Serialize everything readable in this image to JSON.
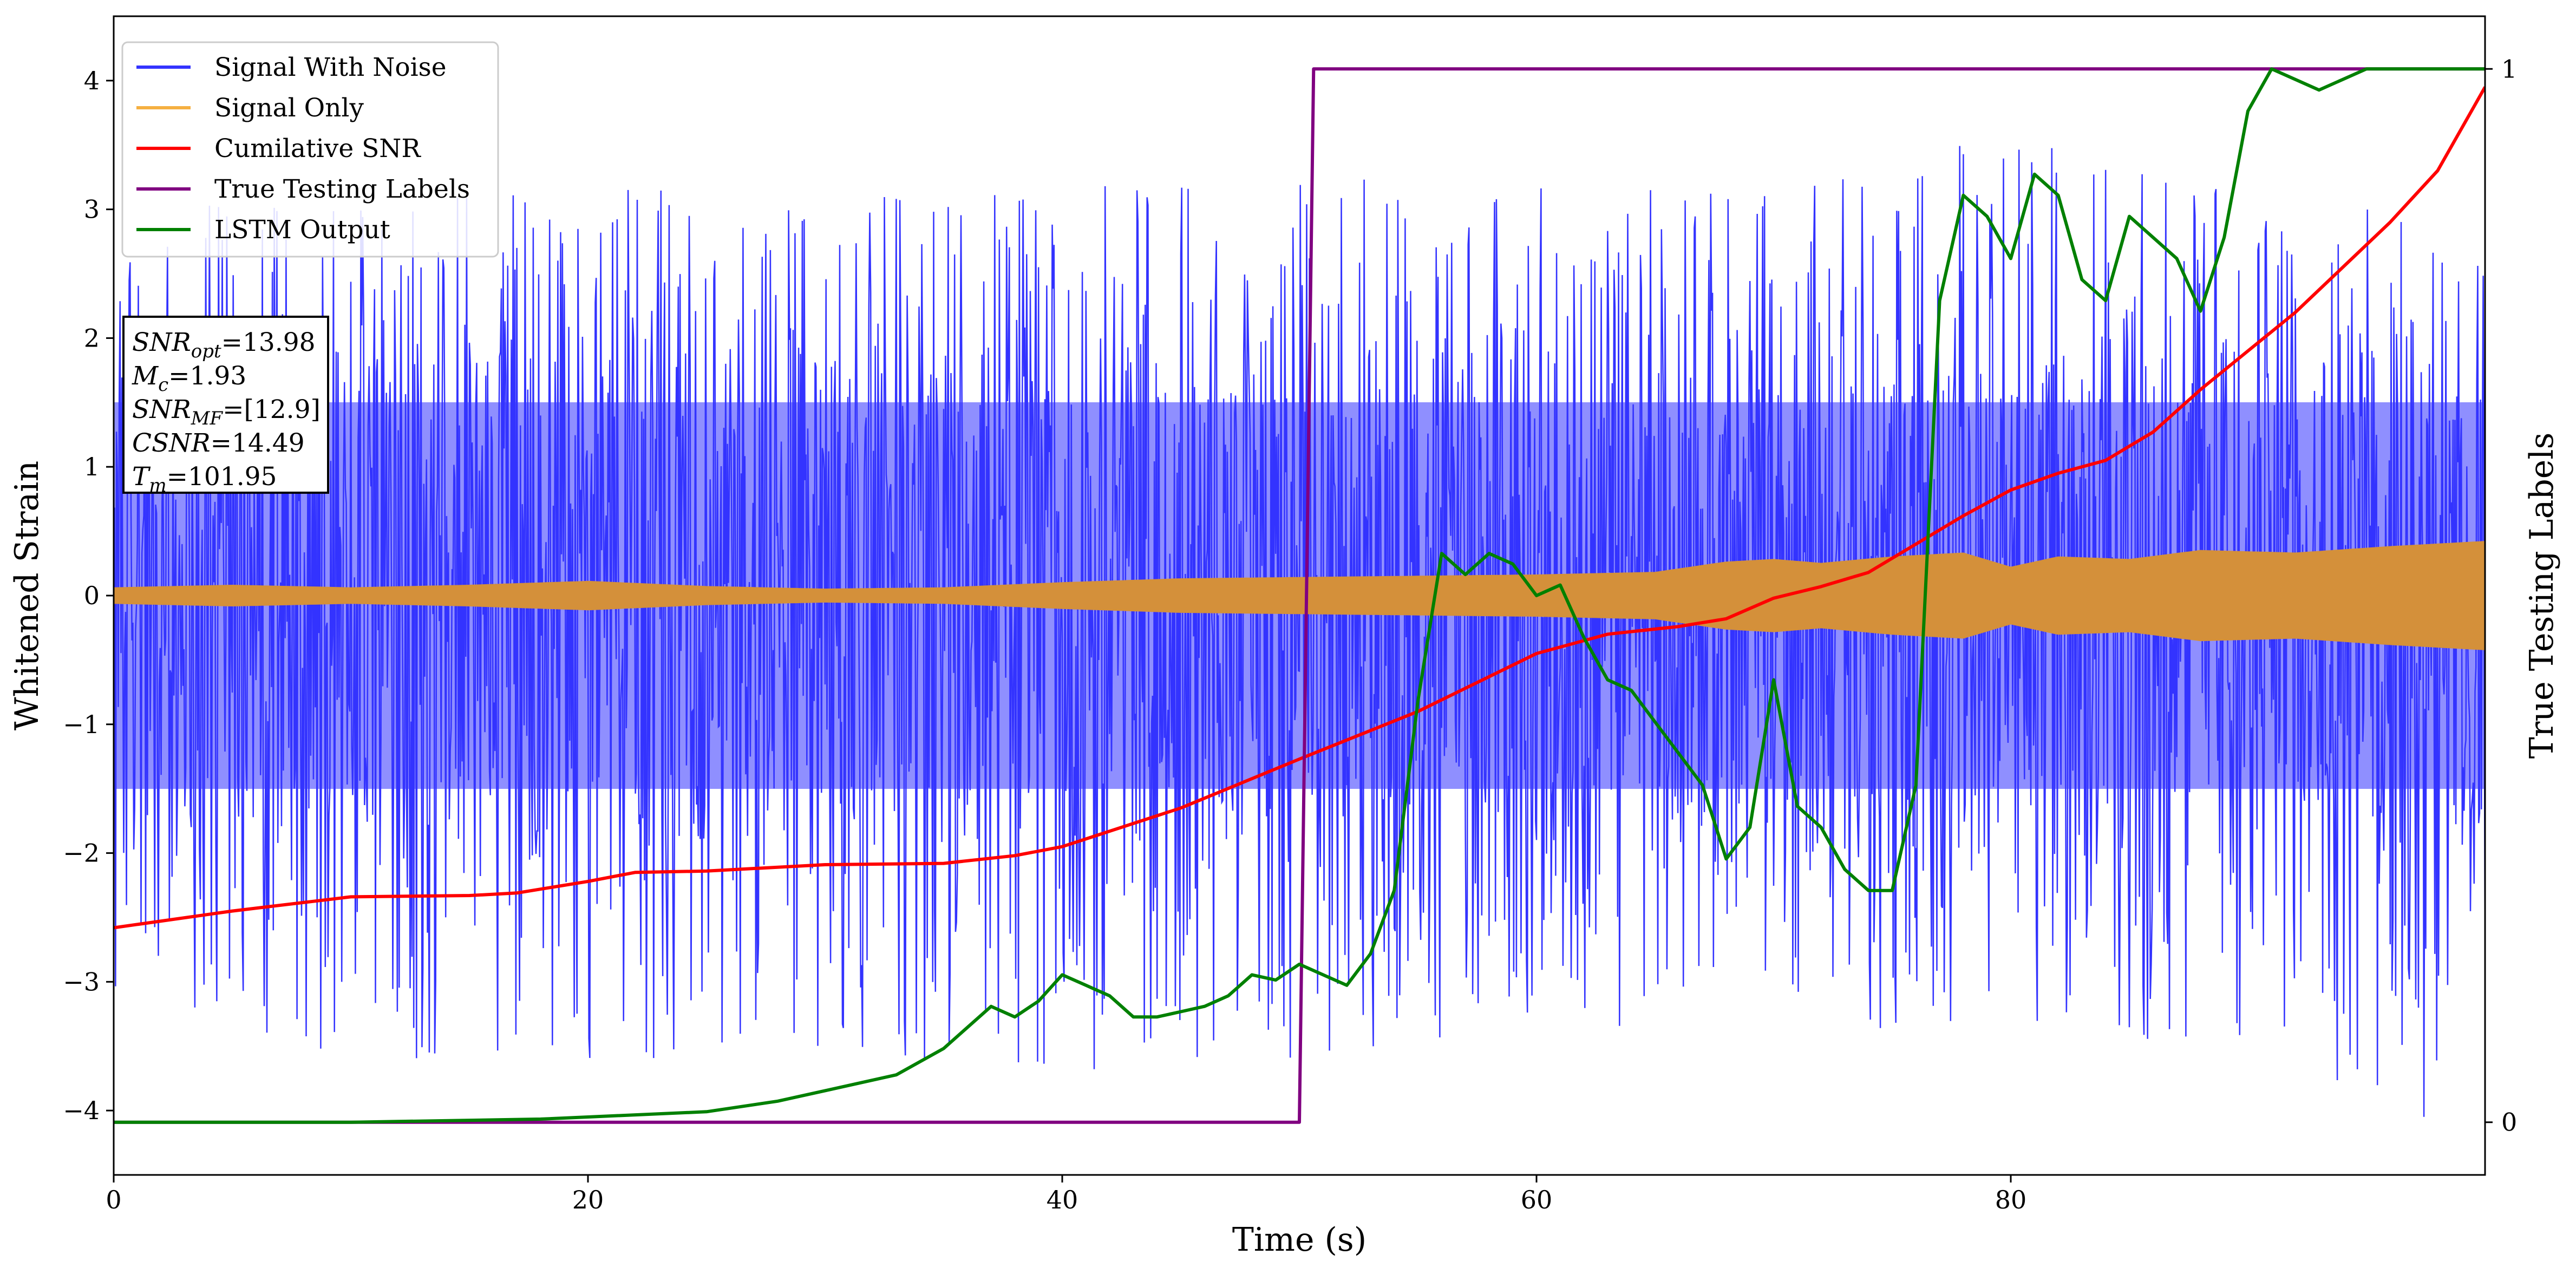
{
  "chart_data": {
    "type": "line",
    "xlabel": "Time (s)",
    "ylabel": "Whitened Strain",
    "y2label": "True Testing Labels",
    "xlim": [
      0,
      100
    ],
    "ylim": [
      -4.5,
      4.5
    ],
    "y2lim": [
      -0.05,
      1.05
    ],
    "xticks": [
      0,
      20,
      40,
      60,
      80
    ],
    "yticks": [
      -4,
      -3,
      -2,
      -1,
      0,
      1,
      2,
      3,
      4
    ],
    "y2ticks": [
      0,
      1
    ],
    "grid": false,
    "legend": {
      "placement": "top-left",
      "entries": [
        {
          "name": "Signal With Noise",
          "color": "#3333ff"
        },
        {
          "name": "Signal Only",
          "color": "#f5b041"
        },
        {
          "name": "Cumilative SNR",
          "color": "#ff0000"
        },
        {
          "name": "True Testing Labels",
          "color": "#800080"
        },
        {
          "name": "LSTM Output",
          "color": "#008000"
        }
      ]
    },
    "annotation": {
      "placement": "left",
      "lines": [
        {
          "sym": "SNR",
          "sub": "opt",
          "val": "=13.98"
        },
        {
          "sym": "M",
          "sub": "c",
          "val": "=1.93"
        },
        {
          "sym": "SNR",
          "sub": "MF",
          "val": "=[12.9]"
        },
        {
          "sym": "CSNR",
          "sub": "",
          "val": "=14.49"
        },
        {
          "sym": "T",
          "sub": "m",
          "val": "=101.95"
        }
      ]
    },
    "series": [
      {
        "name": "Signal With Noise",
        "axis": "left",
        "color": "#3333ff",
        "style": "noise",
        "envelope_upper": [
          [
            0,
            3.0
          ],
          [
            10,
            3.1
          ],
          [
            20,
            3.3
          ],
          [
            30,
            3.1
          ],
          [
            40,
            3.2
          ],
          [
            50,
            3.3
          ],
          [
            60,
            3.2
          ],
          [
            70,
            3.1
          ],
          [
            80,
            3.7
          ],
          [
            90,
            3.1
          ],
          [
            100,
            3.1
          ]
        ],
        "envelope_lower": [
          [
            0,
            -3.2
          ],
          [
            10,
            -3.6
          ],
          [
            20,
            -3.6
          ],
          [
            30,
            -3.6
          ],
          [
            40,
            -3.7
          ],
          [
            50,
            -3.6
          ],
          [
            60,
            -3.4
          ],
          [
            70,
            -3.5
          ],
          [
            80,
            -3.4
          ],
          [
            90,
            -3.5
          ],
          [
            98,
            -4.1
          ],
          [
            100,
            -3.3
          ]
        ],
        "core_half_width": 1.5
      },
      {
        "name": "Signal Only",
        "axis": "left",
        "color": "#d4903a",
        "style": "band",
        "amplitude": [
          [
            0,
            0.06
          ],
          [
            5,
            0.08
          ],
          [
            10,
            0.06
          ],
          [
            15,
            0.08
          ],
          [
            20,
            0.11
          ],
          [
            25,
            0.07
          ],
          [
            30,
            0.05
          ],
          [
            35,
            0.06
          ],
          [
            40,
            0.1
          ],
          [
            45,
            0.13
          ],
          [
            50,
            0.14
          ],
          [
            55,
            0.15
          ],
          [
            60,
            0.16
          ],
          [
            65,
            0.18
          ],
          [
            68,
            0.26
          ],
          [
            70,
            0.28
          ],
          [
            72,
            0.25
          ],
          [
            75,
            0.3
          ],
          [
            78,
            0.33
          ],
          [
            80,
            0.22
          ],
          [
            82,
            0.3
          ],
          [
            85,
            0.28
          ],
          [
            88,
            0.35
          ],
          [
            92,
            0.33
          ],
          [
            96,
            0.38
          ],
          [
            100,
            0.42
          ]
        ]
      },
      {
        "name": "Cumilative SNR",
        "axis": "left",
        "color": "#ff0000",
        "x": [
          0,
          5,
          10,
          15,
          17,
          20,
          22,
          25,
          30,
          35,
          38,
          40,
          45,
          50,
          55,
          60,
          63,
          66,
          68,
          70,
          72,
          74,
          76,
          78,
          80,
          82,
          84,
          86,
          88,
          90,
          92,
          94,
          96,
          98,
          100
        ],
        "y": [
          -2.58,
          -2.45,
          -2.34,
          -2.33,
          -2.31,
          -2.22,
          -2.15,
          -2.14,
          -2.09,
          -2.08,
          -2.02,
          -1.95,
          -1.65,
          -1.27,
          -0.9,
          -0.45,
          -0.3,
          -0.24,
          -0.18,
          -0.02,
          0.07,
          0.18,
          0.4,
          0.62,
          0.82,
          0.95,
          1.05,
          1.27,
          1.6,
          1.9,
          2.2,
          2.55,
          2.9,
          3.3,
          3.95
        ]
      },
      {
        "name": "True Testing Labels",
        "axis": "right",
        "color": "#800080",
        "x": [
          0,
          50.0,
          50.6,
          100
        ],
        "y": [
          0,
          0,
          1,
          1
        ]
      },
      {
        "name": "LSTM Output",
        "axis": "right",
        "color": "#008000",
        "x": [
          0,
          10,
          18,
          20,
          25,
          28,
          30,
          33,
          35,
          36,
          37,
          38,
          39,
          40,
          41,
          42,
          43,
          44,
          45,
          46,
          47,
          48,
          49,
          50,
          51,
          52,
          53,
          54,
          55,
          56,
          57,
          58,
          59,
          60,
          61,
          62,
          63,
          64,
          65,
          66,
          67,
          68,
          69,
          70,
          71,
          72,
          73,
          74,
          75,
          76,
          77,
          78,
          79,
          80,
          81,
          82,
          83,
          84,
          85,
          86,
          87,
          88,
          89,
          90,
          91,
          92,
          93,
          94,
          95,
          96,
          97,
          98,
          99,
          100
        ],
        "y": [
          0.0,
          0.0,
          0.003,
          0.005,
          0.01,
          0.02,
          0.03,
          0.045,
          0.07,
          0.09,
          0.11,
          0.1,
          0.115,
          0.14,
          0.13,
          0.12,
          0.1,
          0.1,
          0.105,
          0.11,
          0.12,
          0.14,
          0.135,
          0.15,
          0.14,
          0.13,
          0.16,
          0.22,
          0.4,
          0.54,
          0.52,
          0.54,
          0.53,
          0.5,
          0.51,
          0.46,
          0.42,
          0.41,
          0.38,
          0.35,
          0.32,
          0.25,
          0.28,
          0.42,
          0.3,
          0.28,
          0.24,
          0.22,
          0.22,
          0.32,
          0.78,
          0.88,
          0.86,
          0.82,
          0.9,
          0.88,
          0.8,
          0.78,
          0.86,
          0.84,
          0.82,
          0.77,
          0.84,
          0.96,
          1.0,
          0.99,
          0.98,
          0.99,
          1.0,
          1.0,
          1.0,
          1.0,
          1.0,
          1.0
        ]
      }
    ]
  }
}
